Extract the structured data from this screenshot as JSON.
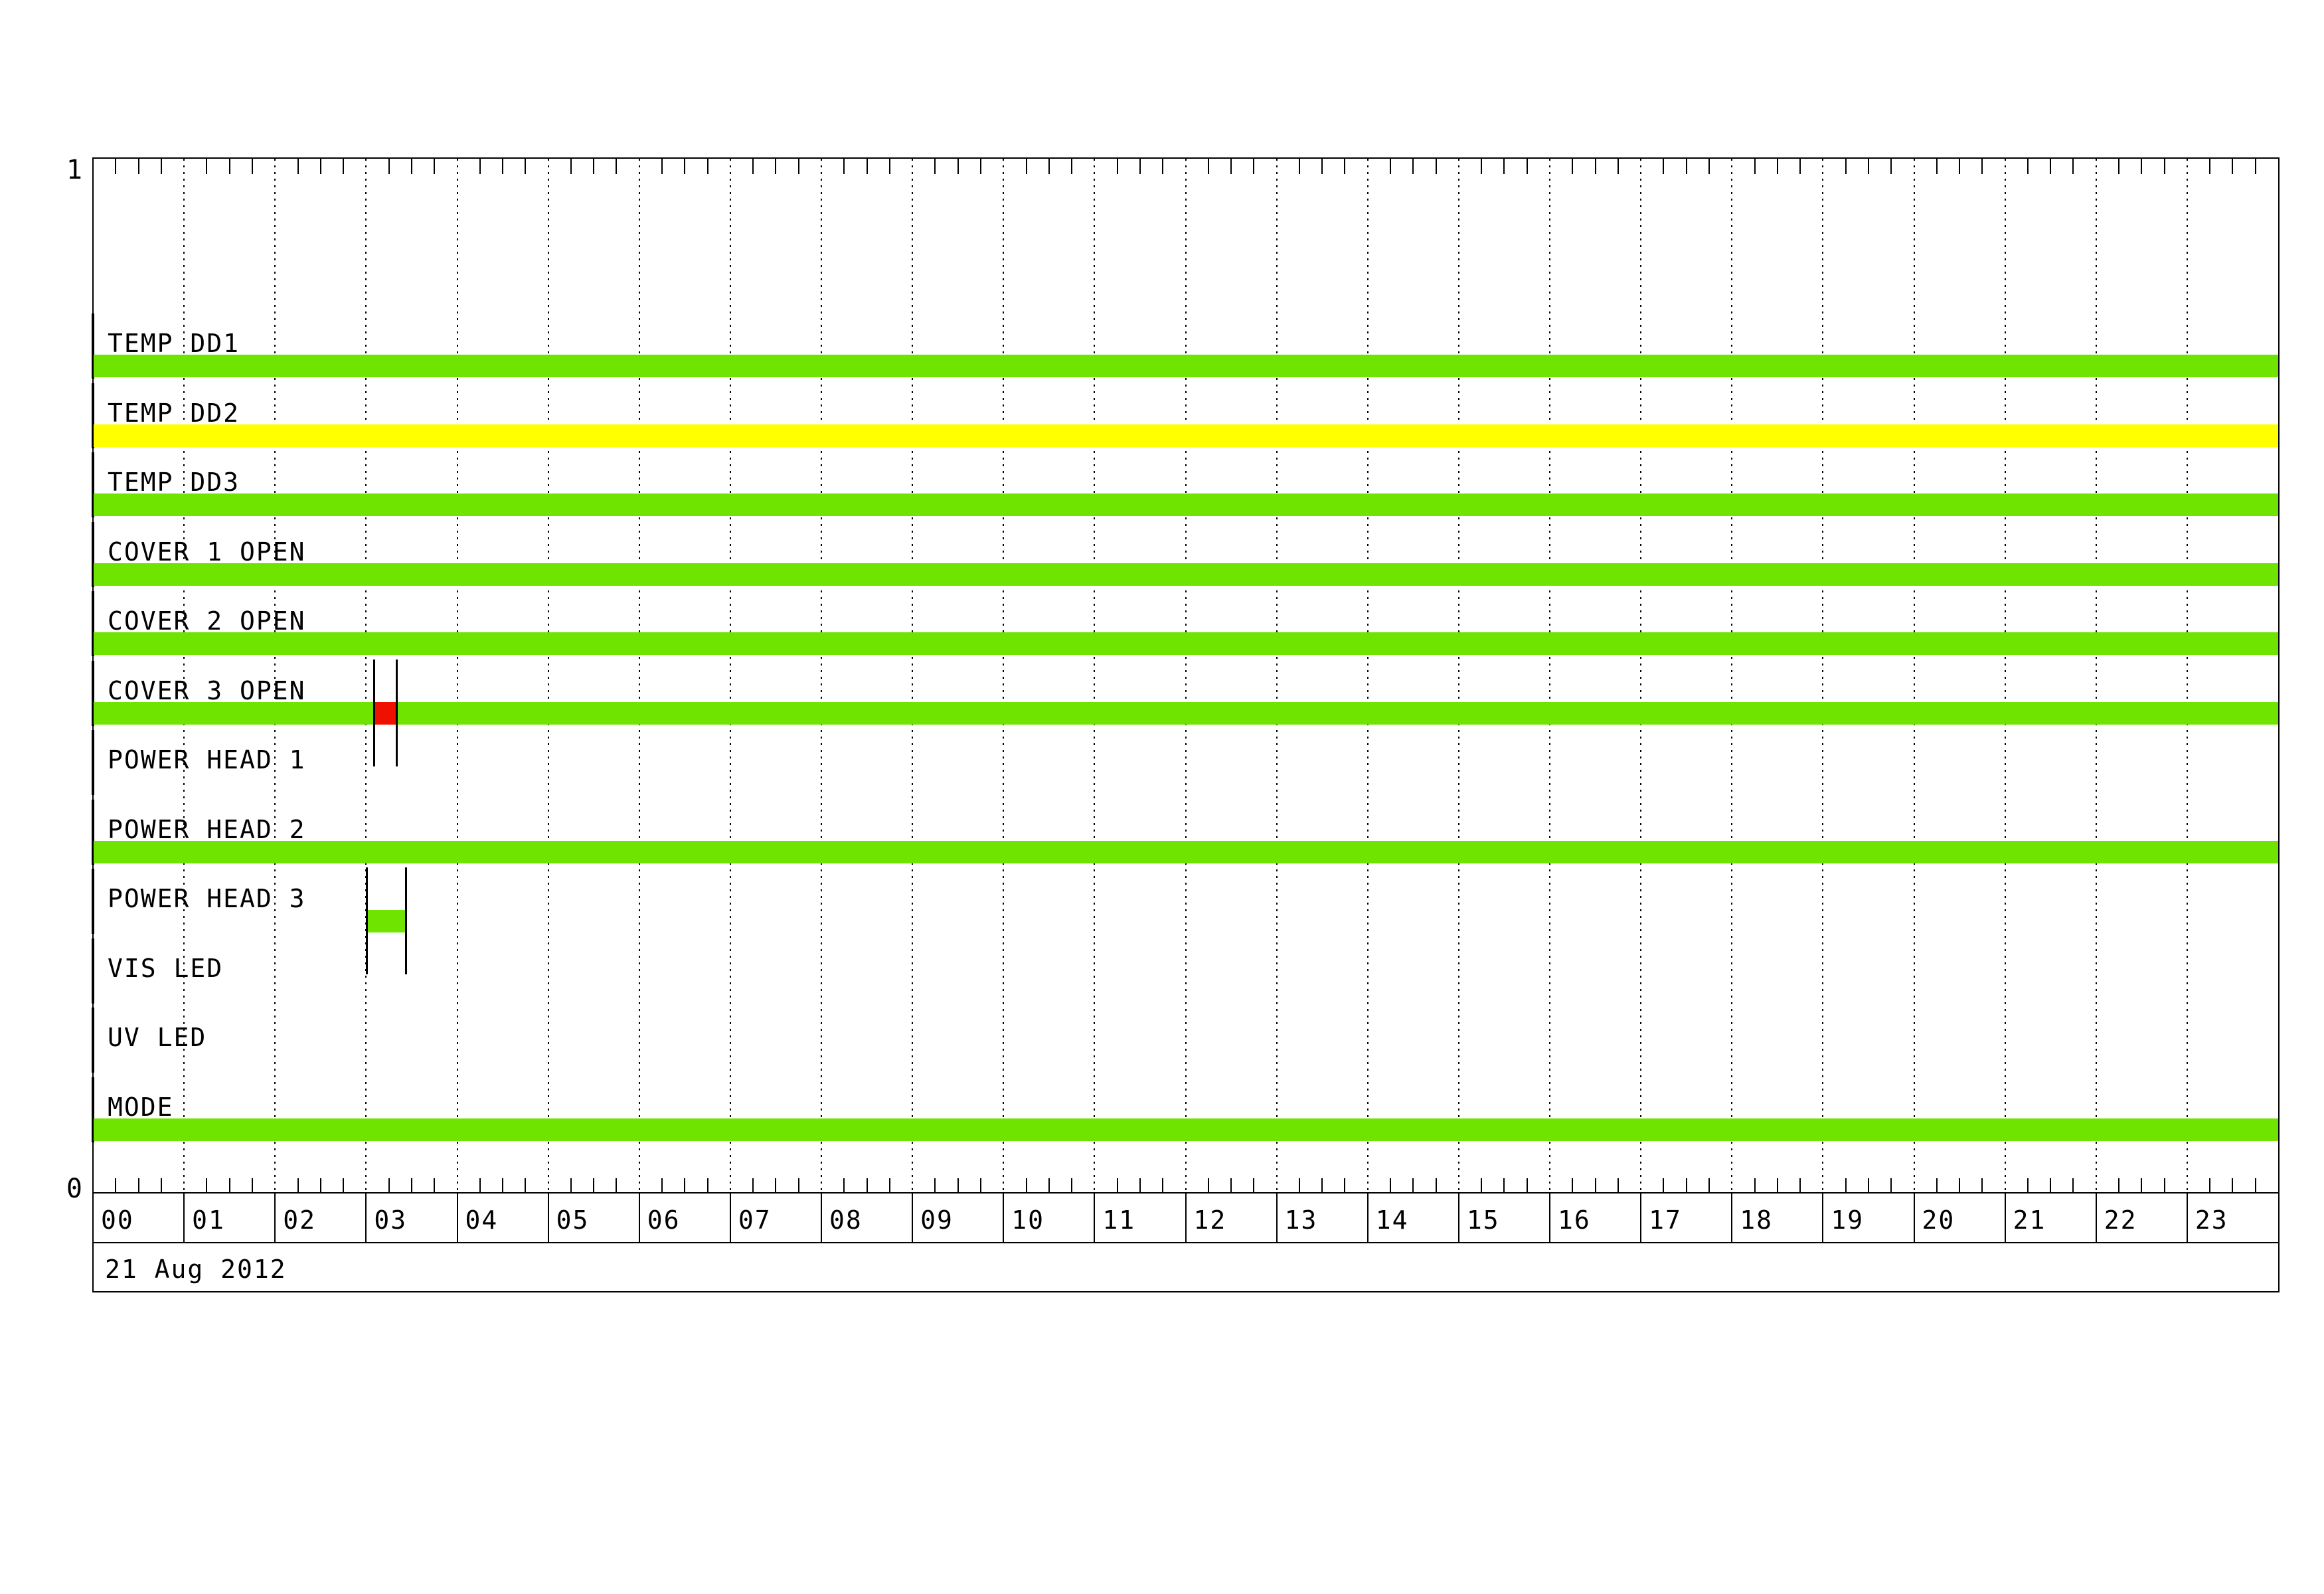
{
  "chart_data": {
    "type": "timeline",
    "title": "",
    "date_label": "21 Aug 2012",
    "x_axis": {
      "unit": "hour",
      "start": 0,
      "end": 24,
      "tick_labels": [
        "00",
        "01",
        "02",
        "03",
        "04",
        "05",
        "06",
        "07",
        "08",
        "09",
        "10",
        "11",
        "12",
        "13",
        "14",
        "15",
        "16",
        "17",
        "18",
        "19",
        "20",
        "21",
        "22",
        "23"
      ],
      "minor_tick_minutes": 15,
      "grid": "dotted-hourly"
    },
    "y_axis": {
      "top_label": "1",
      "bottom_label": "0"
    },
    "status_colors": {
      "nominal": "#6EE400",
      "caution": "#FFFF00",
      "alert": "#F01000"
    },
    "rows": [
      {
        "label": "TEMP DD1",
        "segments": [
          {
            "start": 0,
            "end": 24,
            "status": "nominal"
          }
        ],
        "event_markers": []
      },
      {
        "label": "TEMP DD2",
        "segments": [
          {
            "start": 0,
            "end": 24,
            "status": "caution"
          }
        ],
        "event_markers": []
      },
      {
        "label": "TEMP DD3",
        "segments": [
          {
            "start": 0,
            "end": 24,
            "status": "nominal"
          }
        ],
        "event_markers": []
      },
      {
        "label": "COVER 1 OPEN",
        "segments": [
          {
            "start": 0,
            "end": 24,
            "status": "nominal"
          }
        ],
        "event_markers": []
      },
      {
        "label": "COVER 2 OPEN",
        "segments": [
          {
            "start": 0,
            "end": 24,
            "status": "nominal"
          }
        ],
        "event_markers": []
      },
      {
        "label": "COVER 3 OPEN",
        "segments": [
          {
            "start": 0,
            "end": 3.09,
            "status": "nominal"
          },
          {
            "start": 3.09,
            "end": 3.34,
            "status": "alert"
          },
          {
            "start": 3.34,
            "end": 24,
            "status": "nominal"
          }
        ],
        "event_markers": [
          3.09,
          3.34
        ]
      },
      {
        "label": "POWER HEAD 1",
        "segments": [],
        "event_markers": []
      },
      {
        "label": "POWER HEAD 2",
        "segments": [
          {
            "start": 0,
            "end": 24,
            "status": "nominal"
          }
        ],
        "event_markers": []
      },
      {
        "label": "POWER HEAD 3",
        "segments": [
          {
            "start": 3.01,
            "end": 3.44,
            "status": "nominal"
          }
        ],
        "event_markers": [
          3.01,
          3.44
        ]
      },
      {
        "label": "VIS LED",
        "segments": [],
        "event_markers": []
      },
      {
        "label": "UV LED",
        "segments": [],
        "event_markers": []
      },
      {
        "label": "MODE",
        "segments": [
          {
            "start": 0,
            "end": 24,
            "status": "nominal"
          }
        ],
        "event_markers": []
      }
    ]
  }
}
